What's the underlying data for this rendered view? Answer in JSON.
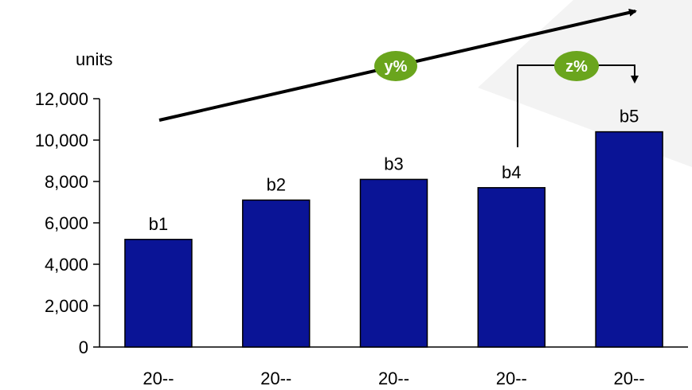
{
  "chart_data": {
    "type": "bar",
    "ylabel": "units",
    "ylim": [
      0,
      12000
    ],
    "yticks": [
      0,
      2000,
      4000,
      6000,
      8000,
      10000,
      12000
    ],
    "ytick_labels": [
      "0",
      "2,000",
      "4,000",
      "6,000",
      "8,000",
      "10,000",
      "12,000"
    ],
    "categories": [
      "20--",
      "20--",
      "20--",
      "20--",
      "20--"
    ],
    "values": [
      5200,
      7100,
      8100,
      7700,
      10400
    ],
    "data_labels": [
      "b1",
      "b2",
      "b3",
      "b4",
      "b5"
    ],
    "grid": false,
    "bar_color": "#0a1496",
    "annotations": {
      "trend_label": "y%",
      "step_label": "z%",
      "badge_color": "#6aa51d"
    }
  }
}
